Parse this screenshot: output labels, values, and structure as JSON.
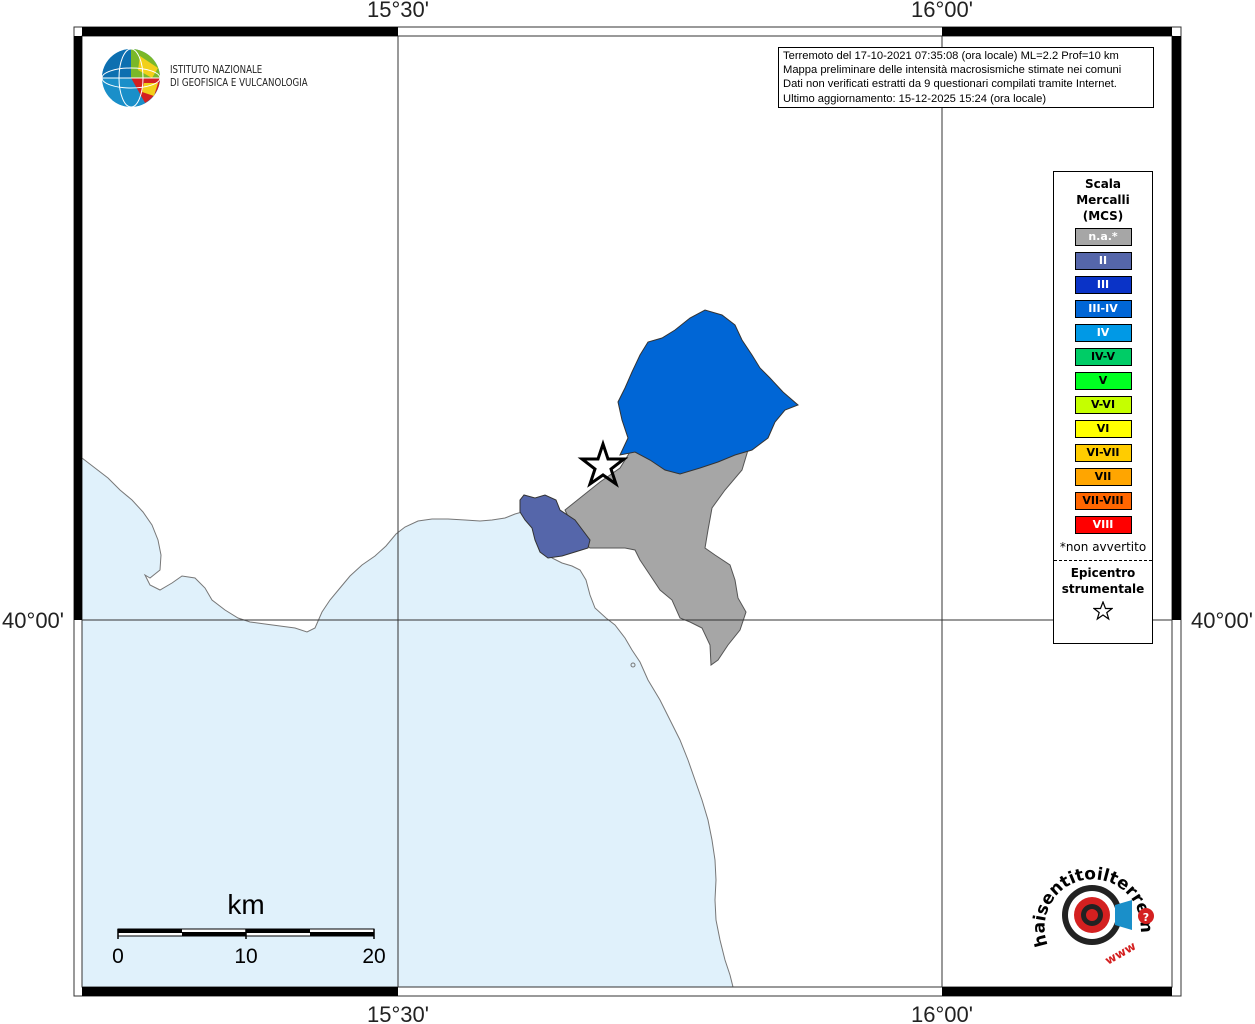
{
  "coordinates": {
    "top_left_lon": "15°30'",
    "top_right_lon": "16°00'",
    "bottom_left_lon": "15°30'",
    "bottom_right_lon": "16°00'",
    "left_lat": "40°00'",
    "right_lat": "40°00'"
  },
  "info_box": {
    "line1": "Terremoto del 17-10-2021 07:35:08 (ora locale) ML=2.2 Prof=10 km",
    "line2": "Mappa preliminare delle intensità macrosismiche stimate nei comuni",
    "line3": "Dati non verificati estratti da 9 questionari compilati tramite Internet.",
    "line4": "Ultimo aggiornamento: 15-12-2025 15:24 (ora locale)"
  },
  "ingv": {
    "line1": "ISTITUTO NAZIONALE",
    "line2": "DI GEOFISICA E VULCANOLOGIA"
  },
  "legend": {
    "title_line1": "Scala",
    "title_line2": "Mercalli",
    "title_line3": "(MCS)",
    "items": [
      {
        "label": "n.a.*",
        "color": "#a6a6a6"
      },
      {
        "label": "II",
        "color": "#5566aa"
      },
      {
        "label": "III",
        "color": "#0a33c7"
      },
      {
        "label": "III-IV",
        "color": "#0066d6"
      },
      {
        "label": "IV",
        "color": "#0099e6"
      },
      {
        "label": "IV-V",
        "color": "#00cc66"
      },
      {
        "label": "V",
        "color": "#00ff22"
      },
      {
        "label": "V-VI",
        "color": "#c5ff00"
      },
      {
        "label": "VI",
        "color": "#ffff00"
      },
      {
        "label": "VI-VII",
        "color": "#ffcc00"
      },
      {
        "label": "VII",
        "color": "#ffa500"
      },
      {
        "label": "VII-VIII",
        "color": "#ff6600"
      },
      {
        "label": "VIII",
        "color": "#ff0000"
      }
    ],
    "note": "*non avvertito",
    "epicenter_line1": "Epicentro",
    "epicenter_line2": "strumentale"
  },
  "scale_bar": {
    "unit": "km",
    "ticks": [
      "0",
      "10",
      "20"
    ]
  },
  "hsit_logo": {
    "text": "haisentitoilterremoto.it",
    "www": "www"
  },
  "map": {
    "sea_color": "#e0f1fb",
    "land_color": "#ffffff",
    "area_gray": "#a6a6a6",
    "area_blue": "#0066d6",
    "area_slate": "#5566aa"
  }
}
